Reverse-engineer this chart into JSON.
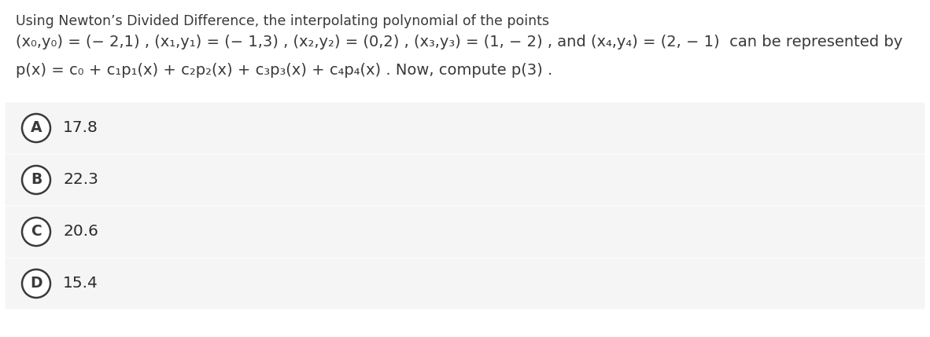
{
  "bg_color": "#ffffff",
  "question_line1": "Using Newton’s Divided Difference, the interpolating polynomial of the points",
  "question_line2": "(x₀,y₀) = (− 2,1) , (x₁,y₁) = (− 1,3) , (x₂,y₂) = (0,2) , (x₃,y₃) = (1, − 2) , and (x₄,y₄) = (2, − 1)  can be represented by",
  "question_line3": "p(x) = c₀ + c₁p₁(x) + c₂p₂(x) + c₃p₃(x) + c₄p₄(x) . Now, compute p(3) .",
  "options": [
    {
      "label": "A",
      "text": "17.8"
    },
    {
      "label": "B",
      "text": "22.3"
    },
    {
      "label": "C",
      "text": "20.6"
    },
    {
      "label": "D",
      "text": "15.4"
    }
  ],
  "option_bg_color": "#f5f5f5",
  "option_text_color": "#2a2a2a",
  "question_text_color": "#3a3a3a",
  "circle_edge_color": "#3a3a3a",
  "circle_bg_color": "#ffffff",
  "font_size_q1": 12.5,
  "font_size_q2": 14.0,
  "font_size_q3": 14.0,
  "font_size_option_label": 13.5,
  "font_size_option_text": 14.5,
  "fig_width": 11.82,
  "fig_height": 4.29,
  "dpi": 100
}
